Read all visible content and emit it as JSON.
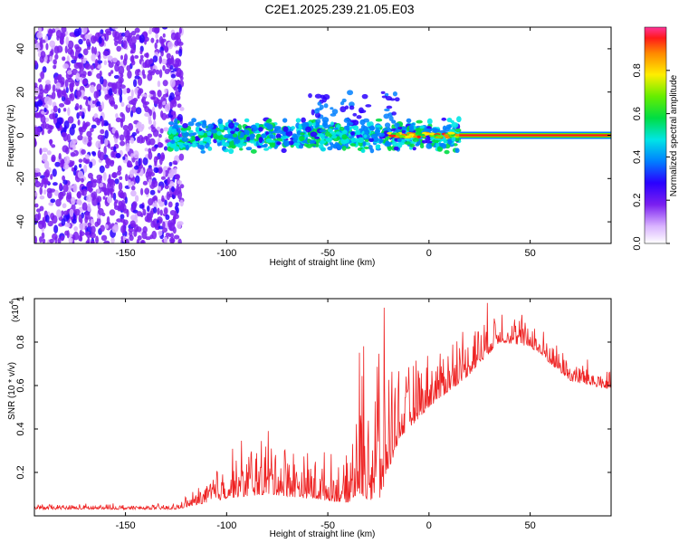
{
  "figure_title": "C2E1.2025.239.21.05.E03",
  "chart_data": [
    {
      "type": "heatmap",
      "name": "spectrogram",
      "xlabel": "Height of straight line (km)",
      "ylabel": "Frequency (Hz)",
      "xlim": [
        -195,
        90
      ],
      "ylim": [
        -50,
        50
      ],
      "xticks": [
        -150,
        -100,
        -50,
        0,
        50
      ],
      "yticks": [
        -40,
        -20,
        0,
        20,
        40
      ],
      "regions": [
        {
          "label": "diffuse noise",
          "x": [
            -195,
            -122
          ],
          "y": [
            -50,
            50
          ]
        },
        {
          "label": "signal band",
          "x": [
            -128,
            15
          ],
          "y_center": 0,
          "spread": 5
        },
        {
          "label": "strong line",
          "x": [
            15,
            90
          ],
          "y_center": 0
        }
      ],
      "colorbar": {
        "label": "Normalized spectral amplitude",
        "range": [
          0,
          1
        ],
        "ticks": [
          0.0,
          0.2,
          0.4,
          0.6,
          0.8
        ]
      }
    },
    {
      "type": "line",
      "name": "snr",
      "xlabel": "Height of straight line (km)",
      "ylabel": "SNR (10 * v/v)",
      "scale_note": "(x10",
      "scale_exp": "4",
      "scale_close": ")",
      "xlim": [
        -195,
        90
      ],
      "ylim": [
        0,
        1.0
      ],
      "xticks": [
        -150,
        -100,
        -50,
        0,
        50
      ],
      "yticks": [
        0.2,
        0.4,
        0.6,
        0.8,
        1.0
      ],
      "line_color": "#ee2222",
      "envelope": [
        {
          "x": -195,
          "base": 0.03,
          "amp": 0.02
        },
        {
          "x": -125,
          "base": 0.03,
          "amp": 0.02
        },
        {
          "x": -115,
          "base": 0.05,
          "amp": 0.06
        },
        {
          "x": -100,
          "base": 0.08,
          "amp": 0.18
        },
        {
          "x": -80,
          "base": 0.1,
          "amp": 0.24
        },
        {
          "x": -60,
          "base": 0.08,
          "amp": 0.18
        },
        {
          "x": -40,
          "base": 0.06,
          "amp": 0.15
        },
        {
          "x": -35,
          "base": 0.1,
          "amp": 0.5
        },
        {
          "x": -25,
          "base": 0.05,
          "amp": 0.7
        },
        {
          "x": -15,
          "base": 0.35,
          "amp": 0.25
        },
        {
          "x": 0,
          "base": 0.5,
          "amp": 0.2
        },
        {
          "x": 20,
          "base": 0.65,
          "amp": 0.2
        },
        {
          "x": 35,
          "base": 0.8,
          "amp": 0.15
        },
        {
          "x": 50,
          "base": 0.78,
          "amp": 0.1
        },
        {
          "x": 70,
          "base": 0.62,
          "amp": 0.1
        },
        {
          "x": 90,
          "base": 0.58,
          "amp": 0.08
        }
      ]
    }
  ]
}
